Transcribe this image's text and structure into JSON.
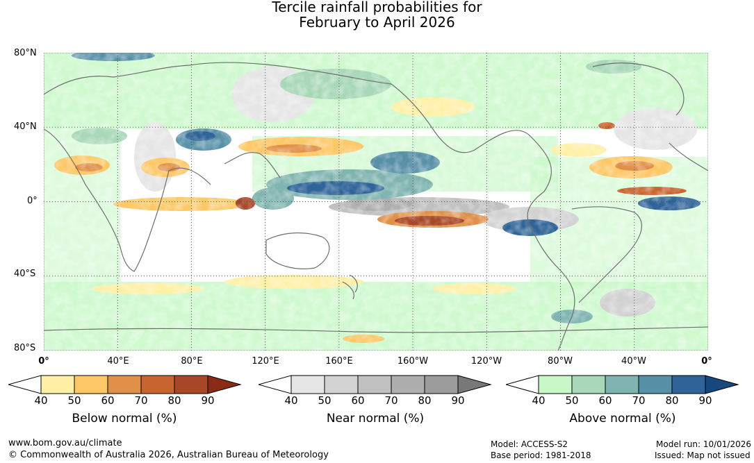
{
  "title": {
    "line1": "Tercile rainfall probabilities for",
    "line2": "February to April 2026"
  },
  "map": {
    "lat_labels": [
      "80°N",
      "40°N",
      "0°",
      "40°S",
      "80°S"
    ],
    "lon_labels": [
      "0°",
      "40°E",
      "80°E",
      "120°E",
      "160°E",
      "160°W",
      "120°W",
      "80°W",
      "40°W",
      "0°"
    ],
    "colors": {
      "ocean": "#ffffff",
      "coast": "#6e6e6e",
      "grid": "#555555"
    }
  },
  "colorbars": [
    {
      "id": "below",
      "title": "Below normal (%)",
      "ticks": [
        "40",
        "50",
        "60",
        "70",
        "80",
        "90"
      ],
      "colors": [
        "#ffffff",
        "#fff0a8",
        "#fdc868",
        "#e09048",
        "#c86430",
        "#a84828",
        "#8c2a18"
      ]
    },
    {
      "id": "near",
      "title": "Near normal (%)",
      "ticks": [
        "40",
        "50",
        "60",
        "70",
        "80",
        "90"
      ],
      "colors": [
        "#ffffff",
        "#e6e6e6",
        "#d2d2d2",
        "#c0c0c0",
        "#aeaeae",
        "#9c9c9c",
        "#787878"
      ]
    },
    {
      "id": "above",
      "title": "Above normal (%)",
      "ticks": [
        "40",
        "50",
        "60",
        "70",
        "80",
        "90"
      ],
      "colors": [
        "#ffffff",
        "#c8f8c8",
        "#a8d8b8",
        "#80b4b0",
        "#5890a8",
        "#306498",
        "#184880"
      ]
    }
  ],
  "footer": {
    "url": "www.bom.gov.au/climate",
    "copyright": "© Commonwealth of Australia 2026, Australian Bureau of Meteorology",
    "model": "Model: ACCESS-S2",
    "base_period": "Base period: 1981-2018",
    "model_run": "Model run: 10/01/2026",
    "issued": "Issued: Map not issued"
  }
}
